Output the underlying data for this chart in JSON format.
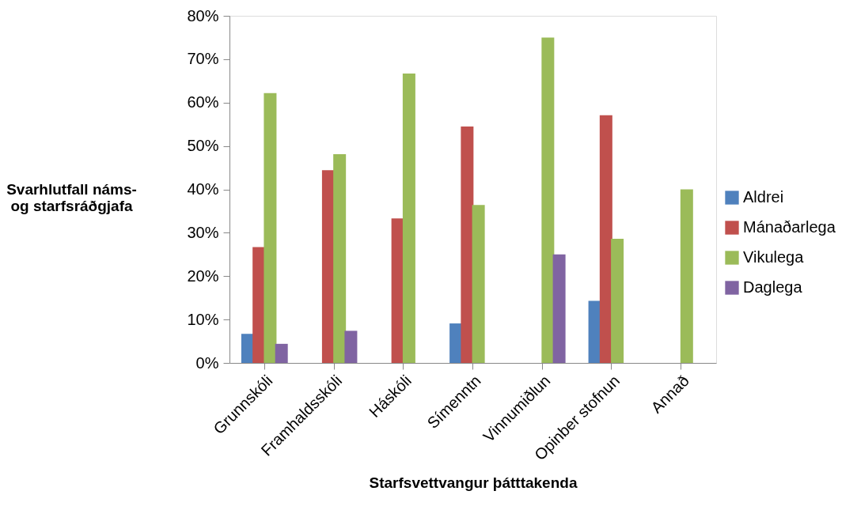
{
  "chart_data": {
    "type": "bar",
    "xlabel": "Starfsvettvangur þátttakenda",
    "ylabel": "Svarhlutfall náms- og starfsráðgjafa",
    "categories": [
      "Grunnskóli",
      "Framhaldsskóli",
      "Háskóli",
      "Símenntn",
      "Vinnumiðlun",
      "Opinber stofnun",
      "Annað"
    ],
    "series": [
      {
        "name": "Aldrei",
        "color": "#4f81bd",
        "values": [
          6.7,
          null,
          null,
          9.1,
          null,
          14.3,
          null
        ]
      },
      {
        "name": "Mánaðarlega",
        "color": "#c0504d",
        "values": [
          26.7,
          44.4,
          33.3,
          54.5,
          null,
          57.1,
          null
        ]
      },
      {
        "name": "Vikulega",
        "color": "#9bbb59",
        "values": [
          62.2,
          48.1,
          66.7,
          36.4,
          75.0,
          28.6,
          40.0
        ]
      },
      {
        "name": "Daglega",
        "color": "#8064a2",
        "values": [
          4.4,
          7.4,
          null,
          null,
          25.0,
          null,
          null
        ]
      }
    ],
    "ylim": [
      0,
      80
    ],
    "yticks": [
      {
        "value": 0,
        "label": "0%"
      },
      {
        "value": 10,
        "label": "10%"
      },
      {
        "value": 20,
        "label": "20%"
      },
      {
        "value": 30,
        "label": "30%"
      },
      {
        "value": 40,
        "label": "40%"
      },
      {
        "value": 50,
        "label": "50%"
      },
      {
        "value": 60,
        "label": "60%"
      },
      {
        "value": 70,
        "label": "70%"
      },
      {
        "value": 80,
        "label": "80%"
      }
    ],
    "grid": false,
    "legend": "right"
  }
}
